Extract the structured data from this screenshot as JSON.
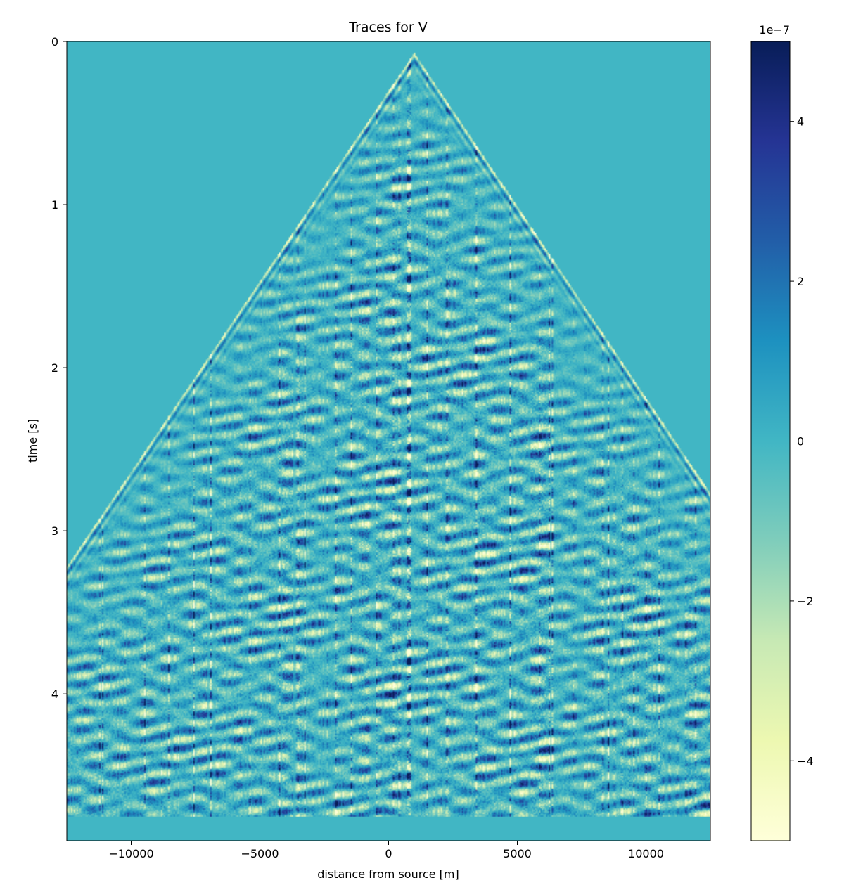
{
  "chart_data": {
    "type": "heatmap",
    "title": "Traces for V",
    "xlabel": "distance from source [m]",
    "ylabel": "time [s]",
    "xlim": [
      -12500,
      12500
    ],
    "ylim": [
      4.9,
      0
    ],
    "y_inverted": true,
    "x_ticks": [
      -10000,
      -5000,
      0,
      5000,
      10000
    ],
    "x_tick_labels": [
      "−10000",
      "−5000",
      "0",
      "5000",
      "10000"
    ],
    "y_ticks": [
      0,
      1,
      2,
      3,
      4
    ],
    "y_tick_labels": [
      "0",
      "1",
      "2",
      "3",
      "4"
    ],
    "background_value": 0,
    "data_end_time": 4.75,
    "first_arrival_apex": {
      "x": 1000,
      "t": 0.1
    },
    "first_arrival_left_end": {
      "x": -12500,
      "t": 3.25
    },
    "first_arrival_right_end": {
      "x": 12500,
      "t": 2.8
    },
    "colorbar": {
      "colormap": "YlGnBu",
      "vmin": -5,
      "vmax": 5,
      "exponent_label": "1e−7",
      "ticks": [
        4,
        2,
        0,
        -2,
        -4
      ],
      "tick_labels": [
        "4",
        "2",
        "0",
        "−2",
        "−4"
      ],
      "stops": [
        "#ffffd9",
        "#edf8b1",
        "#c7e9b4",
        "#7fcdbb",
        "#41b6c4",
        "#1d91c0",
        "#225ea8",
        "#253494",
        "#081d58"
      ]
    },
    "grid": false,
    "legend": "none"
  }
}
